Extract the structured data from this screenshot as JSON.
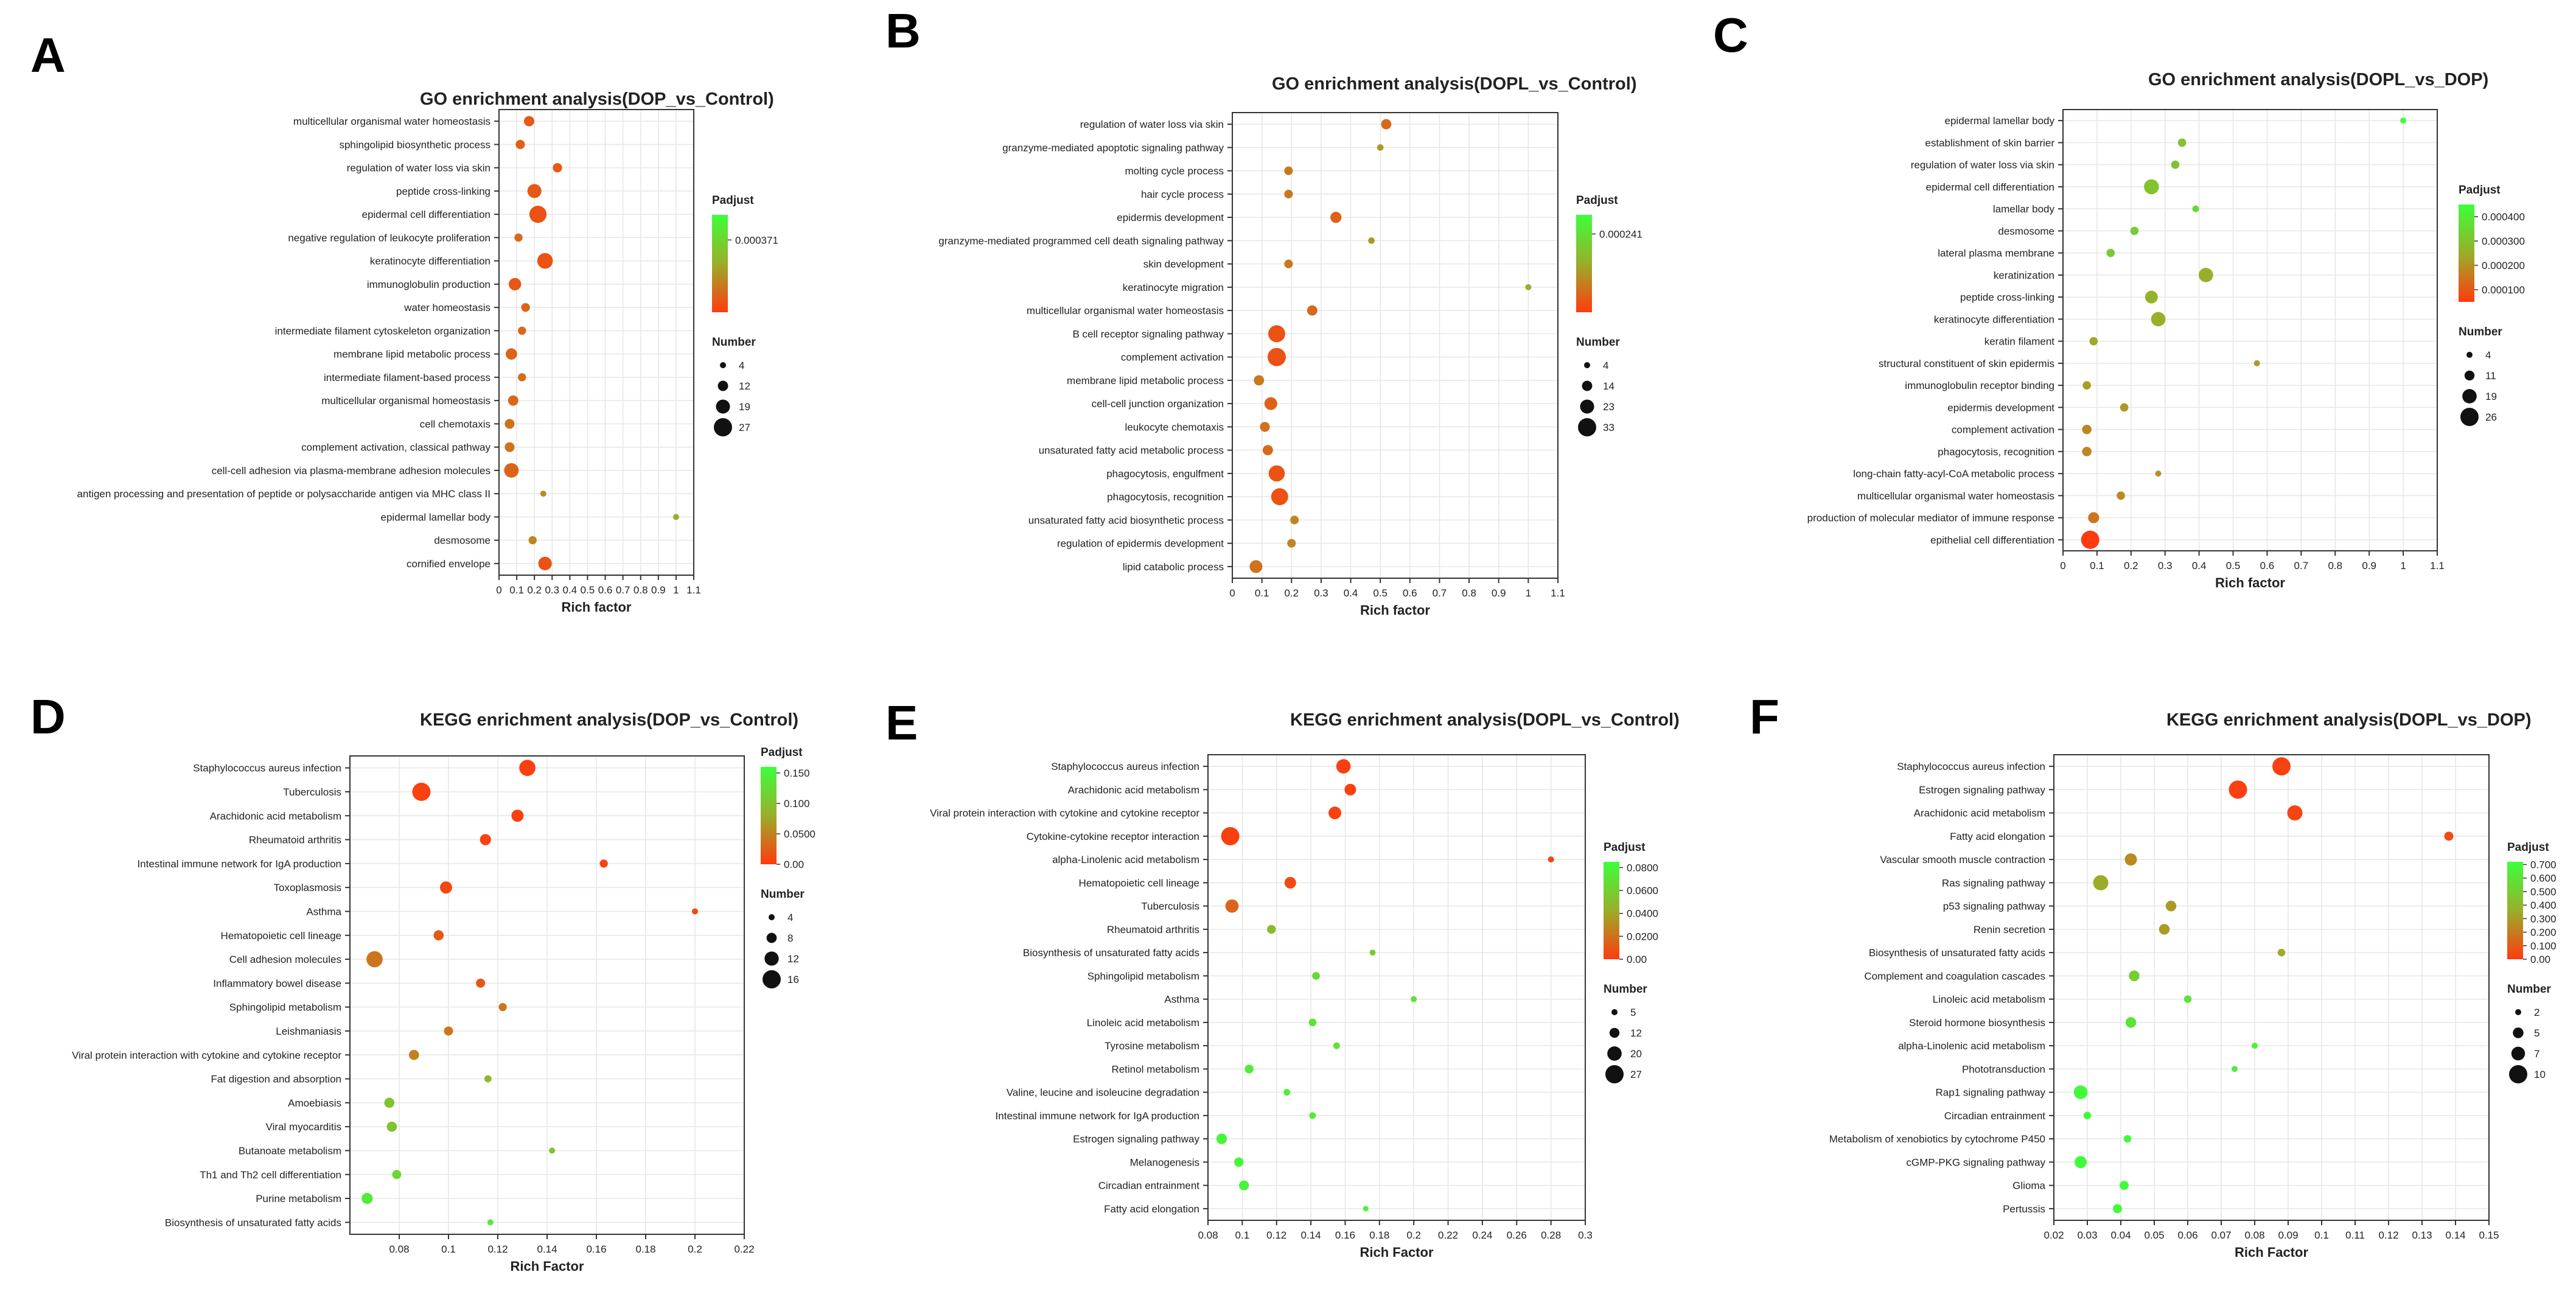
{
  "figure": {
    "panel_letters": [
      "A",
      "B",
      "C",
      "D",
      "E",
      "F"
    ]
  },
  "chart_data": [
    {
      "id": "A",
      "type": "scatter",
      "title": "GO enrichment analysis(DOP_vs_Control)",
      "xlabel": "Rich factor",
      "ylabel": "",
      "xlim": [
        0,
        1.1
      ],
      "xticks": [
        0,
        0.1,
        0.2,
        0.3,
        0.4,
        0.5,
        0.6,
        0.7,
        0.8,
        0.9,
        1,
        1.1
      ],
      "xtick_labels": [
        "0",
        "0.1",
        "0.2",
        "0.3",
        "0.4",
        "0.5",
        "0.6",
        "0.7",
        "0.8",
        "0.9",
        "1",
        "1.1"
      ],
      "categories": [
        "multicellular organismal water homeostasis",
        "sphingolipid biosynthetic process",
        "regulation of water loss via skin",
        "peptide cross-linking",
        "epidermal cell differentiation",
        "negative regulation of leukocyte proliferation",
        "keratinocyte differentiation",
        "immunoglobulin production",
        "water homeostasis",
        "intermediate filament cytoskeleton organization",
        "membrane lipid metabolic process",
        "intermediate filament-based process",
        "multicellular organismal homeostasis",
        "cell chemotaxis",
        "complement activation, classical pathway",
        "cell-cell adhesion via plasma-membrane adhesion molecules",
        "antigen processing and presentation of peptide or polysaccharide antigen via MHC class II",
        "epidermal lamellar body",
        "desmosome",
        "cornified envelope"
      ],
      "rich_factor": [
        0.17,
        0.12,
        0.33,
        0.2,
        0.22,
        0.11,
        0.26,
        0.09,
        0.15,
        0.13,
        0.07,
        0.13,
        0.08,
        0.06,
        0.06,
        0.07,
        0.25,
        1.0,
        0.19,
        0.26
      ],
      "count": [
        12,
        10,
        10,
        19,
        25,
        8,
        22,
        16,
        9,
        8,
        14,
        8,
        12,
        11,
        11,
        20,
        4,
        4,
        8,
        18
      ],
      "padjust": [
        7e-05,
        8e-05,
        6e-05,
        6e-05,
        5e-05,
        0.0001,
        5e-05,
        6e-05,
        9e-05,
        0.0001,
        9e-05,
        0.00011,
        0.0001,
        0.00012,
        0.00012,
        9e-05,
        0.00018,
        0.00025,
        0.00016,
        5e-05
      ],
      "legend": {
        "padjust_title": "Padjust",
        "padjust_ticks": [
          0.000371
        ],
        "padjust_tick_labels": [
          "0.000371"
        ],
        "padjust_range": [
          0,
          0.0005
        ],
        "number_title": "Number",
        "number_ticks": [
          4,
          12,
          19,
          27
        ],
        "number_tick_labels": [
          "4",
          "12",
          "19",
          "27"
        ]
      }
    },
    {
      "id": "B",
      "type": "scatter",
      "title": "GO enrichment analysis(DOPL_vs_Control)",
      "xlabel": "Rich factor",
      "ylabel": "",
      "xlim": [
        0,
        1.1
      ],
      "xticks": [
        0,
        0.1,
        0.2,
        0.3,
        0.4,
        0.5,
        0.6,
        0.7,
        0.8,
        0.9,
        1,
        1.1
      ],
      "xtick_labels": [
        "0",
        "0.1",
        "0.2",
        "0.3",
        "0.4",
        "0.5",
        "0.6",
        "0.7",
        "0.8",
        "0.9",
        "1",
        "1.1"
      ],
      "categories": [
        "regulation of water loss via skin",
        "granzyme-mediated apoptotic signaling pathway",
        "molting cycle process",
        "hair cycle process",
        "epidermis development",
        "granzyme-mediated programmed cell death signaling pathway",
        "skin development",
        "keratinocyte migration",
        "multicellular organismal water homeostasis",
        "B cell receptor signaling pathway",
        "complement activation",
        "membrane lipid metabolic process",
        "cell-cell junction organization",
        "leukocyte chemotaxis",
        "unsaturated fatty acid metabolic process",
        "phagocytosis, engulfment",
        "phagocytosis, recognition",
        "unsaturated fatty acid biosynthetic process",
        "regulation of epidermis development",
        "lipid catabolic process"
      ],
      "rich_factor": [
        0.52,
        0.5,
        0.19,
        0.19,
        0.35,
        0.47,
        0.19,
        1.0,
        0.27,
        0.15,
        0.15,
        0.09,
        0.13,
        0.11,
        0.12,
        0.15,
        0.16,
        0.21,
        0.2,
        0.08
      ],
      "count": [
        14,
        5,
        10,
        10,
        16,
        5,
        10,
        4,
        14,
        30,
        33,
        14,
        20,
        13,
        14,
        28,
        30,
        10,
        10,
        20
      ],
      "padjust": [
        6e-05,
        0.00012,
        8e-05,
        8e-05,
        5e-05,
        0.00012,
        8e-05,
        0.00015,
        6e-05,
        3e-05,
        3e-05,
        8e-05,
        5e-05,
        7e-05,
        6e-05,
        3e-05,
        3e-05,
        0.0001,
        0.0001,
        7e-05
      ],
      "legend": {
        "padjust_title": "Padjust",
        "padjust_ticks": [
          0.000241
        ],
        "padjust_tick_labels": [
          "0.000241"
        ],
        "padjust_range": [
          0,
          0.0003
        ],
        "number_title": "Number",
        "number_ticks": [
          4,
          14,
          23,
          33
        ],
        "number_tick_labels": [
          "4",
          "14",
          "23",
          "33"
        ]
      }
    },
    {
      "id": "C",
      "type": "scatter",
      "title": "GO enrichment analysis(DOPL_vs_DOP)",
      "xlabel": "Rich factor",
      "ylabel": "",
      "xlim": [
        0,
        1.1
      ],
      "xticks": [
        0,
        0.1,
        0.2,
        0.3,
        0.4,
        0.5,
        0.6,
        0.7,
        0.8,
        0.9,
        1,
        1.1
      ],
      "xtick_labels": [
        "0",
        "0.1",
        "0.2",
        "0.3",
        "0.4",
        "0.5",
        "0.6",
        "0.7",
        "0.8",
        "0.9",
        "1",
        "1.1"
      ],
      "categories": [
        "epidermal lamellar body",
        "establishment of skin barrier",
        "regulation of water loss via skin",
        "epidermal cell differentiation",
        "lamellar body",
        "desmosome",
        "lateral plasma membrane",
        "keratinization",
        "peptide cross-linking",
        "keratinocyte differentiation",
        "keratin filament",
        "structural constituent of skin epidermis",
        "immunoglobulin receptor binding",
        "epidermis development",
        "complement activation",
        "phagocytosis, recognition",
        "long-chain fatty-acyl-CoA metabolic process",
        "multicellular organismal water homeostasis",
        "production of molecular mediator of immune response",
        "epithelial cell differentiation"
      ],
      "rich_factor": [
        1.0,
        0.35,
        0.33,
        0.26,
        0.39,
        0.21,
        0.14,
        0.42,
        0.26,
        0.28,
        0.09,
        0.57,
        0.07,
        0.18,
        0.07,
        0.07,
        0.28,
        0.17,
        0.09,
        0.08
      ],
      "count": [
        4,
        8,
        8,
        20,
        5,
        8,
        8,
        19,
        16,
        19,
        8,
        4,
        8,
        8,
        10,
        10,
        4,
        8,
        13,
        26
      ],
      "padjust": [
        0.00048,
        0.0003,
        0.0003,
        0.0003,
        0.00035,
        0.00033,
        0.00032,
        0.00025,
        0.00026,
        0.00025,
        0.00024,
        0.00022,
        0.00022,
        0.00021,
        0.00018,
        0.00018,
        0.0002,
        0.00019,
        0.00015,
        5e-05
      ],
      "legend": {
        "padjust_title": "Padjust",
        "padjust_ticks": [
          0.0004,
          0.0003,
          0.0002,
          0.0001
        ],
        "padjust_tick_labels": [
          "0.000400",
          "0.000300",
          "0.000200",
          "0.000100"
        ],
        "padjust_range": [
          5e-05,
          0.00045
        ],
        "number_title": "Number",
        "number_ticks": [
          4,
          11,
          19,
          26
        ],
        "number_tick_labels": [
          "4",
          "11",
          "19",
          "26"
        ]
      }
    },
    {
      "id": "D",
      "type": "scatter",
      "title": "KEGG enrichment analysis(DOP_vs_Control)",
      "xlabel": "Rich Factor",
      "ylabel": "",
      "xlim": [
        0.06,
        0.22
      ],
      "xticks": [
        0.08,
        0.1,
        0.12,
        0.14,
        0.16,
        0.18,
        0.2,
        0.22
      ],
      "xtick_labels": [
        "0.08",
        "0.1",
        "0.12",
        "0.14",
        "0.16",
        "0.18",
        "0.2",
        "0.22"
      ],
      "categories": [
        "Staphylococcus aureus infection",
        "Tuberculosis",
        "Arachidonic acid metabolism",
        "Rheumatoid arthritis",
        "Intestinal immune network for IgA production",
        "Toxoplasmosis",
        "Asthma",
        "Hematopoietic cell lineage",
        "Cell adhesion molecules",
        "Inflammatory bowel disease",
        "Sphingolipid metabolism",
        "Leishmaniasis",
        "Viral protein interaction with cytokine and cytokine receptor",
        "Fat digestion and absorption",
        "Amoebiasis",
        "Viral myocarditis",
        "Butanoate metabolism",
        "Th1 and Th2 cell differentiation",
        "Purine metabolism",
        "Biosynthesis of unsaturated fatty acids"
      ],
      "rich_factor": [
        0.132,
        0.089,
        0.128,
        0.115,
        0.163,
        0.099,
        0.2,
        0.096,
        0.07,
        0.113,
        0.122,
        0.1,
        0.086,
        0.116,
        0.076,
        0.077,
        0.142,
        0.079,
        0.067,
        0.117
      ],
      "count": [
        14,
        16,
        10,
        9,
        6,
        10,
        4,
        8,
        14,
        7,
        6,
        7,
        8,
        5,
        8,
        8,
        4,
        7,
        9,
        4
      ],
      "padjust": [
        0.002,
        0.004,
        0.003,
        0.006,
        0.006,
        0.008,
        0.01,
        0.02,
        0.04,
        0.02,
        0.04,
        0.04,
        0.05,
        0.09,
        0.1,
        0.1,
        0.1,
        0.12,
        0.14,
        0.14
      ],
      "legend": {
        "padjust_title": "Padjust",
        "padjust_ticks": [
          0.15,
          0.1,
          0.05,
          0.0
        ],
        "padjust_tick_labels": [
          "0.150",
          "0.100",
          "0.0500",
          "0.00"
        ],
        "padjust_range": [
          0,
          0.16
        ],
        "number_title": "Number",
        "number_ticks": [
          4,
          8,
          12,
          16
        ],
        "number_tick_labels": [
          "4",
          "8",
          "12",
          "16"
        ]
      }
    },
    {
      "id": "E",
      "type": "scatter",
      "title": "KEGG enrichment analysis(DOPL_vs_Control)",
      "xlabel": "Rich Factor",
      "ylabel": "",
      "xlim": [
        0.08,
        0.3
      ],
      "xticks": [
        0.08,
        0.1,
        0.12,
        0.14,
        0.16,
        0.18,
        0.2,
        0.22,
        0.24,
        0.26,
        0.28,
        0.3
      ],
      "xtick_labels": [
        "0.08",
        "0.1",
        "0.12",
        "0.14",
        "0.16",
        "0.18",
        "0.2",
        "0.22",
        "0.24",
        "0.26",
        "0.28",
        "0.3"
      ],
      "categories": [
        "Staphylococcus aureus infection",
        "Arachidonic acid metabolism",
        "Viral protein interaction with cytokine and cytokine receptor",
        "Cytokine-cytokine receptor interaction",
        "alpha-Linolenic acid metabolism",
        "Hematopoietic cell lineage",
        "Tuberculosis",
        "Rheumatoid arthritis",
        "Biosynthesis of unsaturated fatty acids",
        "Sphingolipid metabolism",
        "Asthma",
        "Linoleic acid metabolism",
        "Tyrosine metabolism",
        "Retinol metabolism",
        "Valine, leucine and isoleucine degradation",
        "Intestinal immune network for IgA production",
        "Estrogen signaling pathway",
        "Melanogenesis",
        "Circadian entrainment",
        "Fatty acid elongation"
      ],
      "rich_factor": [
        0.159,
        0.163,
        0.154,
        0.093,
        0.28,
        0.128,
        0.094,
        0.117,
        0.176,
        0.143,
        0.2,
        0.141,
        0.155,
        0.104,
        0.126,
        0.141,
        0.088,
        0.098,
        0.101,
        0.172
      ],
      "count": [
        20,
        15,
        17,
        27,
        5,
        15,
        18,
        10,
        5,
        8,
        5,
        8,
        6,
        10,
        6,
        6,
        13,
        11,
        12,
        4
      ],
      "padjust": [
        0.002,
        0.002,
        0.003,
        0.002,
        0.004,
        0.006,
        0.015,
        0.05,
        0.06,
        0.065,
        0.07,
        0.07,
        0.07,
        0.075,
        0.075,
        0.075,
        0.08,
        0.08,
        0.08,
        0.08
      ],
      "legend": {
        "padjust_title": "Padjust",
        "padjust_ticks": [
          0.08,
          0.06,
          0.04,
          0.02,
          0.0
        ],
        "padjust_tick_labels": [
          "0.0800",
          "0.0600",
          "0.0400",
          "0.0200",
          "0.00"
        ],
        "padjust_range": [
          0,
          0.085
        ],
        "number_title": "Number",
        "number_ticks": [
          5,
          12,
          20,
          27
        ],
        "number_tick_labels": [
          "5",
          "12",
          "20",
          "27"
        ]
      }
    },
    {
      "id": "F",
      "type": "scatter",
      "title": "KEGG enrichment analysis(DOPL_vs_DOP)",
      "xlabel": "Rich Factor",
      "ylabel": "",
      "xlim": [
        0.02,
        0.15
      ],
      "xticks": [
        0.02,
        0.03,
        0.04,
        0.05,
        0.06,
        0.07,
        0.08,
        0.09,
        0.1,
        0.11,
        0.12,
        0.13,
        0.14,
        0.15
      ],
      "xtick_labels": [
        "0.02",
        "0.03",
        "0.04",
        "0.05",
        "0.06",
        "0.07",
        "0.08",
        "0.09",
        "0.1",
        "0.11",
        "0.12",
        "0.13",
        "0.14",
        "0.15"
      ],
      "categories": [
        "Staphylococcus aureus infection",
        "Estrogen signaling pathway",
        "Arachidonic acid metabolism",
        "Fatty acid elongation",
        "Vascular smooth muscle contraction",
        "Ras signaling pathway",
        "p53 signaling pathway",
        "Renin secretion",
        "Biosynthesis of unsaturated fatty acids",
        "Complement and coagulation cascades",
        "Linoleic acid metabolism",
        "Steroid hormone biosynthesis",
        "alpha-Linolenic acid metabolism",
        "Phototransduction",
        "Rap1 signaling pathway",
        "Circadian entrainment",
        "Metabolism of xenobiotics by cytochrome P450",
        "cGMP-PKG signaling pathway",
        "Glioma",
        "Pertussis"
      ],
      "rich_factor": [
        0.088,
        0.075,
        0.092,
        0.138,
        0.043,
        0.034,
        0.055,
        0.053,
        0.088,
        0.044,
        0.06,
        0.043,
        0.08,
        0.074,
        0.028,
        0.03,
        0.042,
        0.028,
        0.041,
        0.039
      ],
      "count": [
        10,
        10,
        8,
        4,
        6,
        8,
        5,
        5,
        3,
        5,
        3,
        5,
        2,
        2,
        7,
        3,
        3,
        6,
        4,
        4
      ],
      "padjust": [
        0.02,
        0.02,
        0.03,
        0.05,
        0.25,
        0.35,
        0.3,
        0.3,
        0.35,
        0.5,
        0.6,
        0.6,
        0.65,
        0.65,
        0.7,
        0.7,
        0.7,
        0.7,
        0.7,
        0.7
      ],
      "legend": {
        "padjust_title": "Padjust",
        "padjust_ticks": [
          0.7,
          0.6,
          0.5,
          0.4,
          0.3,
          0.2,
          0.1,
          0.0
        ],
        "padjust_tick_labels": [
          "0.700",
          "0.600",
          "0.500",
          "0.400",
          "0.300",
          "0.200",
          "0.100",
          "0.00"
        ],
        "padjust_range": [
          0,
          0.72
        ],
        "number_title": "Number",
        "number_ticks": [
          2,
          5,
          7,
          10
        ],
        "number_tick_labels": [
          "2",
          "5",
          "7",
          "10"
        ]
      }
    }
  ]
}
